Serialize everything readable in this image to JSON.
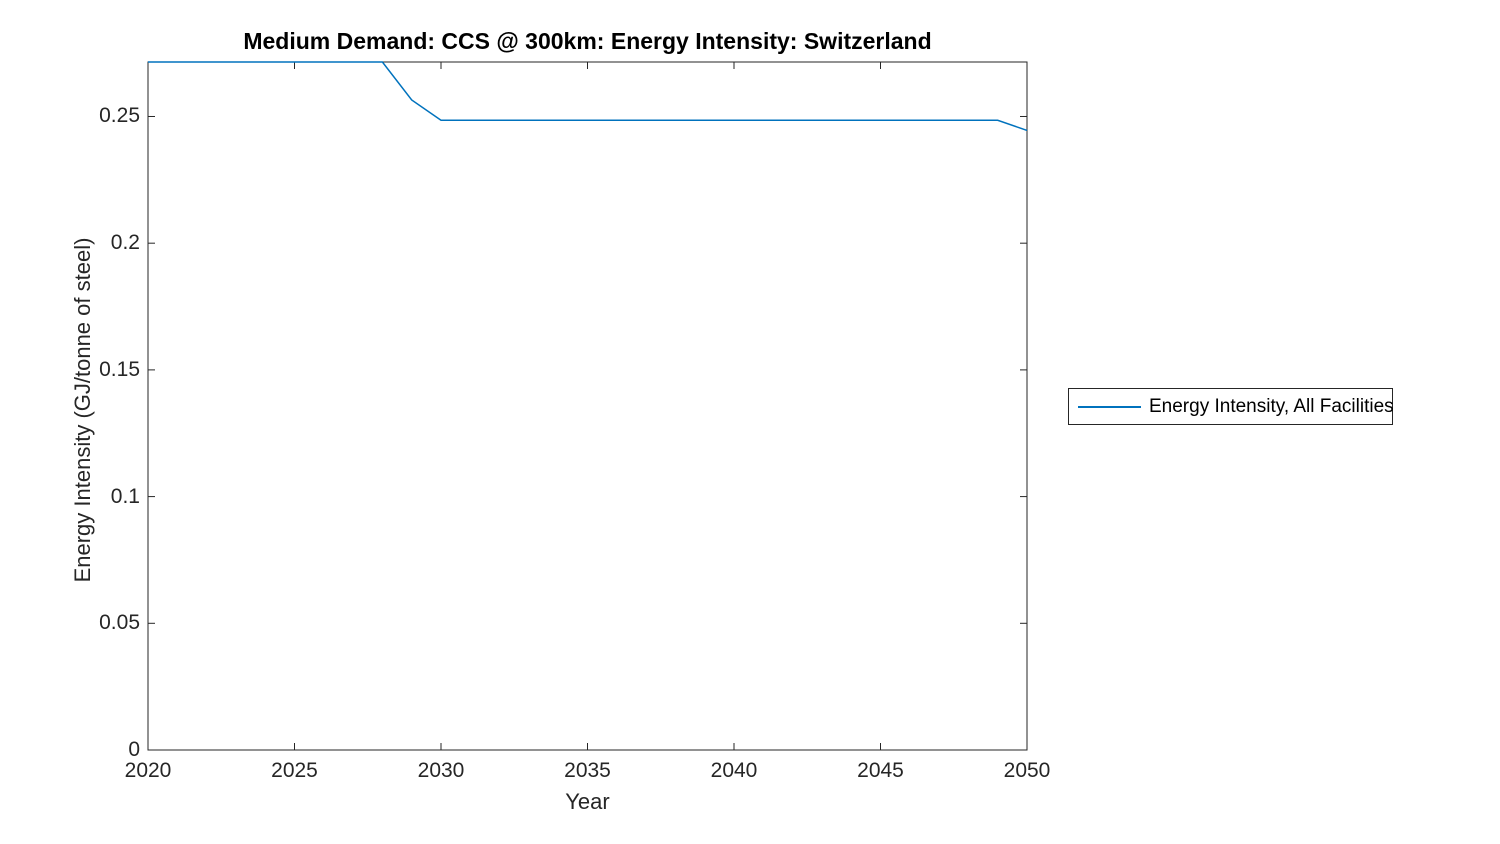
{
  "figure": {
    "background": "#ffffff"
  },
  "colors": {
    "background": "#ffffff",
    "axis": "#262626",
    "tick_label": "#262626",
    "title": "#000000",
    "series_blue": "#0072BD"
  },
  "chart_data": {
    "type": "line",
    "title": "Medium Demand: CCS @ 300km: Energy Intensity: Switzerland",
    "xlabel": "Year",
    "ylabel": "Energy Intensity (GJ/tonne of steel)",
    "xlim": [
      2020,
      2050
    ],
    "ylim": [
      0,
      0.2715
    ],
    "xticks": [
      2020,
      2025,
      2030,
      2035,
      2040,
      2045,
      2050
    ],
    "xtick_labels": [
      "2020",
      "2025",
      "2030",
      "2035",
      "2040",
      "2045",
      "2050"
    ],
    "yticks": [
      0,
      0.05,
      0.1,
      0.15,
      0.2,
      0.25
    ],
    "ytick_labels": [
      "0",
      "0.05",
      "0.1",
      "0.15",
      "0.2",
      "0.25"
    ],
    "grid": false,
    "box": true,
    "legend": {
      "position": "outside-right",
      "border_color": "#262626",
      "entries": [
        {
          "label": "Energy Intensity, All Facilities",
          "color": "#0072BD",
          "style": "solid"
        }
      ]
    },
    "series": [
      {
        "name": "Energy Intensity, All Facilities",
        "color": "#0072BD",
        "x": [
          2020,
          2021,
          2022,
          2023,
          2024,
          2025,
          2026,
          2027,
          2028,
          2029,
          2030,
          2031,
          2032,
          2033,
          2034,
          2035,
          2036,
          2037,
          2038,
          2039,
          2040,
          2041,
          2042,
          2043,
          2044,
          2045,
          2046,
          2047,
          2048,
          2049,
          2050
        ],
        "y": [
          0.2715,
          0.2715,
          0.2715,
          0.2715,
          0.2715,
          0.2715,
          0.2715,
          0.2715,
          0.2715,
          0.2565,
          0.2485,
          0.2485,
          0.2485,
          0.2485,
          0.2485,
          0.2485,
          0.2485,
          0.2485,
          0.2485,
          0.2485,
          0.2485,
          0.2485,
          0.2485,
          0.2485,
          0.2485,
          0.2485,
          0.2485,
          0.2485,
          0.2485,
          0.2485,
          0.2445
        ]
      }
    ]
  }
}
